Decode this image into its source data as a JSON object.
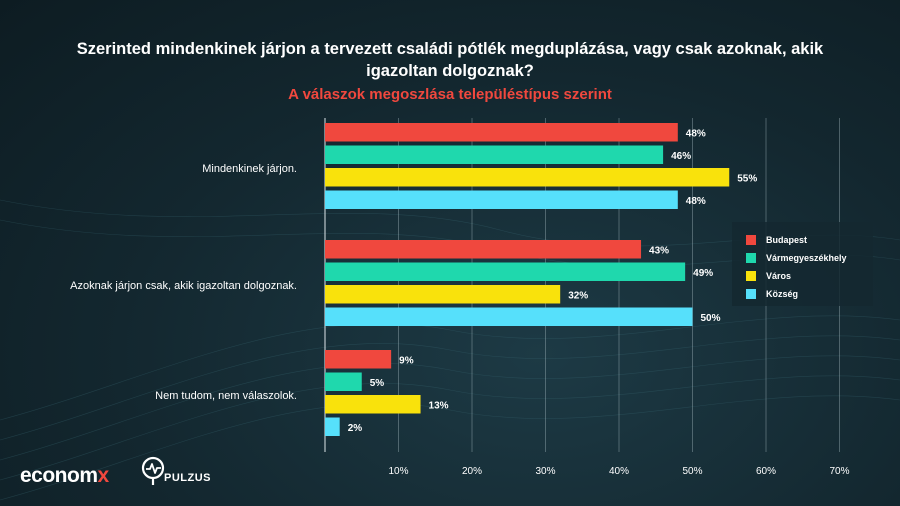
{
  "header": {
    "title_line1": "Szerinted mindenkinek járjon a tervezett családi pótlék megduplázása, vagy csak azoknak, akik",
    "title_line2": "igazoltan dolgoznak?",
    "subtitle": "A válaszok megoszlása településtípus szerint"
  },
  "logos": {
    "econ_main": "econom",
    "econ_x": "x",
    "pulzus": "PULZUS"
  },
  "colors": {
    "background": "#13272f",
    "subtitle": "#f0483e",
    "Budapest": "#f0483e",
    "Vármegyeszékhely": "#1fd8ad",
    "Város": "#f9e20c",
    "Község": "#56e0fb"
  },
  "chart_data": {
    "type": "bar",
    "orientation": "horizontal",
    "categories": [
      "Mindenkinek járjon.",
      "Azoknak járjon csak, akik igazoltan dolgoznak.",
      "Nem tudom, nem válaszolok."
    ],
    "series": [
      {
        "name": "Budapest",
        "color": "#f0483e",
        "values": [
          48,
          43,
          9
        ]
      },
      {
        "name": "Vármegyeszékhely",
        "color": "#1fd8ad",
        "values": [
          46,
          49,
          5
        ]
      },
      {
        "name": "Város",
        "color": "#f9e20c",
        "values": [
          55,
          32,
          13
        ]
      },
      {
        "name": "Község",
        "color": "#56e0fb",
        "values": [
          48,
          50,
          2
        ]
      }
    ],
    "value_format": "{v}%",
    "xlim": [
      0,
      70
    ],
    "xticks": [
      10,
      20,
      30,
      40,
      50,
      60,
      70
    ],
    "xtick_labels": [
      "10%",
      "20%",
      "30%",
      "40%",
      "50%",
      "60%",
      "70%"
    ],
    "grid": true,
    "legend_position": "right",
    "title": "Szerinted mindenkinek járjon a tervezett családi pótlék megduplázása, vagy csak azoknak, akik igazoltan dolgoznak?",
    "subtitle": "A válaszok megoszlása településtípus szerint"
  }
}
